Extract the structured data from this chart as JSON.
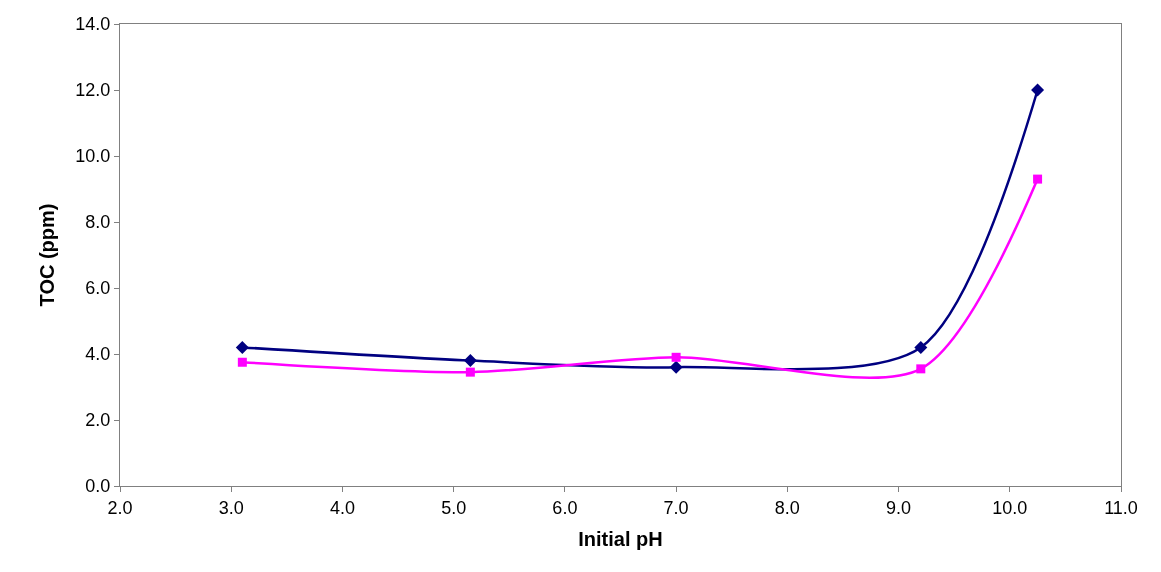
{
  "chart_data": {
    "type": "line",
    "xlabel": "Initial pH",
    "ylabel": "TOC (ppm)",
    "x": [
      3.1,
      5.15,
      7.0,
      9.2,
      10.25
    ],
    "series": [
      {
        "color": "#000080",
        "marker": "diamond",
        "values": [
          4.2,
          3.8,
          3.6,
          4.2,
          12.0
        ]
      },
      {
        "color": "#ff00ff",
        "marker": "square",
        "values": [
          3.75,
          3.45,
          3.9,
          3.55,
          9.3
        ]
      }
    ],
    "xlim": [
      2.0,
      11.0
    ],
    "xticks": [
      {
        "value": 2,
        "label": "2.0"
      },
      {
        "value": 3,
        "label": "3.0"
      },
      {
        "value": 4,
        "label": "4.0"
      },
      {
        "value": 5,
        "label": "5.0"
      },
      {
        "value": 6,
        "label": "6.0"
      },
      {
        "value": 7,
        "label": "7.0"
      },
      {
        "value": 8,
        "label": "8.0"
      },
      {
        "value": 9,
        "label": "9.0"
      },
      {
        "value": 10,
        "label": "10.0"
      },
      {
        "value": 11,
        "label": "11.0"
      }
    ],
    "ylim": [
      0.0,
      14.0
    ],
    "yticks": [
      {
        "value": 0,
        "label": "0.0"
      },
      {
        "value": 2,
        "label": "2.0"
      },
      {
        "value": 4,
        "label": "4.0"
      },
      {
        "value": 6,
        "label": "6.0"
      },
      {
        "value": 8,
        "label": "8.0"
      },
      {
        "value": 10,
        "label": "10.0"
      },
      {
        "value": 12,
        "label": "12.0"
      },
      {
        "value": 14,
        "label": "14.0"
      }
    ]
  }
}
